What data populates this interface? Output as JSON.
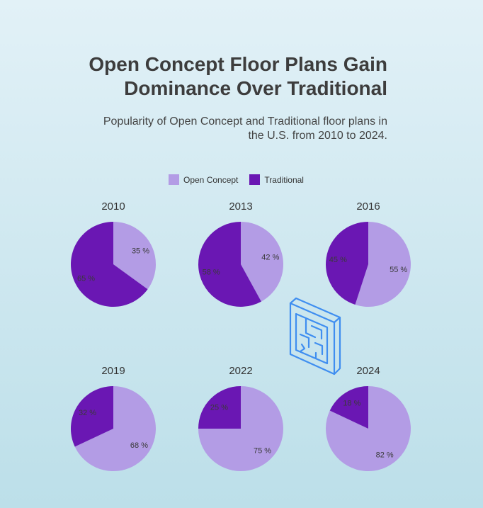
{
  "title_line1": "Open Concept Floor Plans Gain",
  "title_line2": "Dominance Over Traditional",
  "subtitle_line1": "Popularity of Open Concept and Traditional floor plans in",
  "subtitle_line2": "the U.S. from 2010 to 2024.",
  "colors": {
    "open": "#b39ce5",
    "traditional": "#6a17b3",
    "icon": "#3f8ef0"
  },
  "icon": "floor-plan-icon",
  "chart_data": {
    "type": "pie",
    "series_names": [
      "Open Concept",
      "Traditional"
    ],
    "legend": [
      "Open Concept",
      "Traditional"
    ],
    "legend_placement": "top",
    "value_suffix": " %",
    "charts": [
      {
        "title": "2010",
        "values": [
          35,
          65
        ]
      },
      {
        "title": "2013",
        "values": [
          42,
          58
        ]
      },
      {
        "title": "2016",
        "values": [
          55,
          45
        ]
      },
      {
        "title": "2019",
        "values": [
          68,
          32
        ]
      },
      {
        "title": "2022",
        "values": [
          75,
          25
        ]
      },
      {
        "title": "2024",
        "values": [
          82,
          18
        ]
      }
    ]
  }
}
